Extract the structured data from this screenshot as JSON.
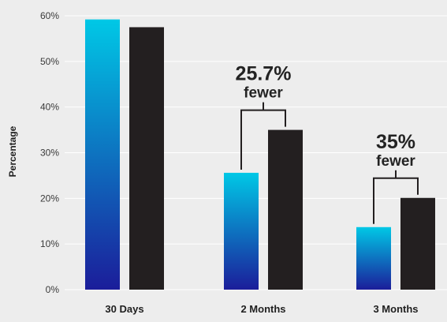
{
  "chart_data": {
    "type": "bar",
    "categories": [
      "30 Days",
      "2 Months",
      "3 Months"
    ],
    "series": [
      {
        "values": [
          59.2,
          25.6,
          13.7
        ],
        "color": "#00c8e6"
      },
      {
        "values": [
          57.5,
          35.0,
          20.1
        ],
        "color": "#231f20"
      }
    ],
    "ylabel": "Percentage",
    "ylim": [
      0,
      60
    ],
    "yticks": [
      "0%",
      "10%",
      "20%",
      "30%",
      "40%",
      "50%",
      "60%"
    ],
    "grid": true,
    "annotations": [
      {
        "category_index": 1,
        "value": "25.7%",
        "text": "fewer"
      },
      {
        "category_index": 2,
        "value": "35%",
        "text": "fewer"
      }
    ]
  },
  "colors": {
    "background": "#ededed",
    "gradient_top": "#00c8e6",
    "gradient_bottom": "#1b1d9a",
    "dark_bar": "#231f20",
    "gridline": "#ffffff"
  }
}
